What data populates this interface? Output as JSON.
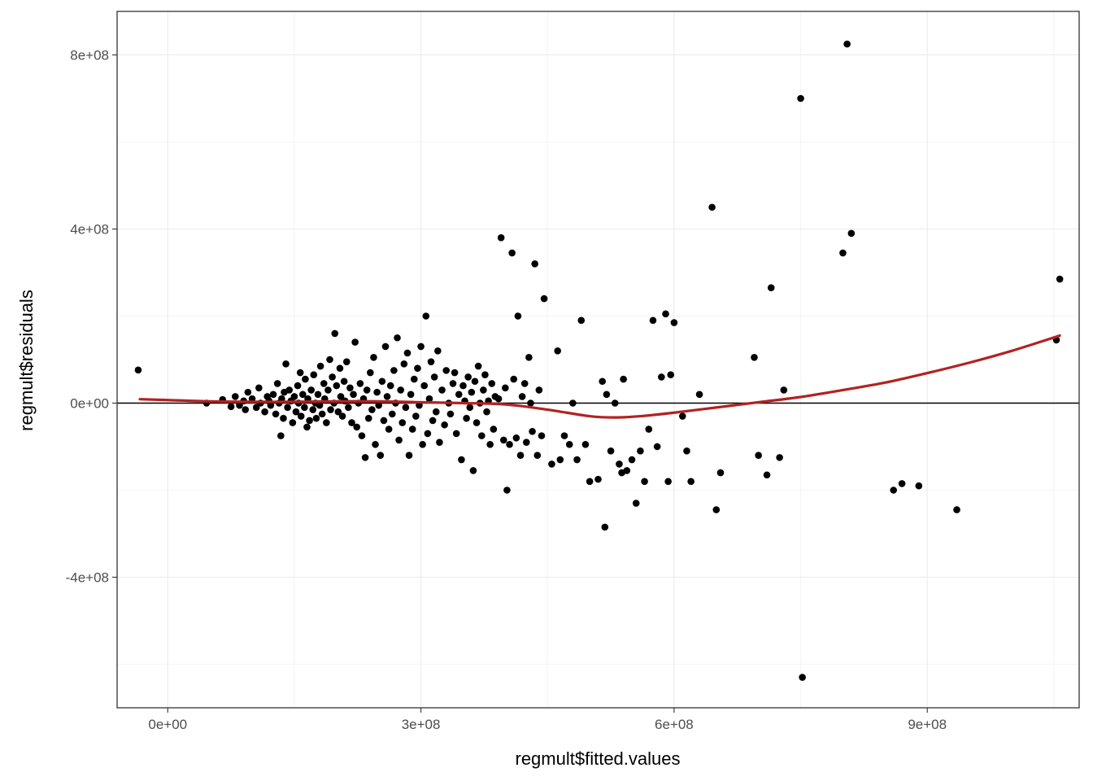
{
  "chart_data": {
    "type": "scatter",
    "title": "",
    "xlabel": "regmult$fitted.values",
    "ylabel": "regmult$residuals",
    "xlim": [
      -60000000,
      1080000000
    ],
    "ylim": [
      -700000000,
      900000000
    ],
    "x_ticks": [
      {
        "value": 0,
        "label": "0e+00"
      },
      {
        "value": 300000000,
        "label": "3e+08"
      },
      {
        "value": 600000000,
        "label": "6e+08"
      },
      {
        "value": 900000000,
        "label": "9e+08"
      }
    ],
    "y_ticks": [
      {
        "value": -400000000,
        "label": "-4e+08"
      },
      {
        "value": 0,
        "label": "0e+00"
      },
      {
        "value": 400000000,
        "label": "4e+08"
      },
      {
        "value": 800000000,
        "label": "8e+08"
      }
    ],
    "grid": true,
    "reference_line": {
      "y": 0
    },
    "colors": {
      "points": "#000000",
      "smooth": "#b22222",
      "grid": "#ebebeb",
      "border": "#333333",
      "zero_line": "#000000"
    },
    "smooth_curve": [
      [
        -33000000,
        9000000
      ],
      [
        0,
        7000000
      ],
      [
        50000000,
        4000000
      ],
      [
        100000000,
        3000000
      ],
      [
        150000000,
        3000000
      ],
      [
        200000000,
        4000000
      ],
      [
        250000000,
        4000000
      ],
      [
        300000000,
        2000000
      ],
      [
        350000000,
        0
      ],
      [
        400000000,
        -3000000
      ],
      [
        450000000,
        -15000000
      ],
      [
        500000000,
        -30000000
      ],
      [
        530000000,
        -33000000
      ],
      [
        560000000,
        -30000000
      ],
      [
        600000000,
        -22000000
      ],
      [
        650000000,
        -10000000
      ],
      [
        700000000,
        2000000
      ],
      [
        750000000,
        14000000
      ],
      [
        800000000,
        30000000
      ],
      [
        850000000,
        47000000
      ],
      [
        900000000,
        69000000
      ],
      [
        950000000,
        93000000
      ],
      [
        1000000000,
        120000000
      ],
      [
        1057000000,
        155000000
      ]
    ],
    "points": [
      [
        -35000000,
        76000000
      ],
      [
        46000000,
        0
      ],
      [
        65000000,
        8000000
      ],
      [
        75000000,
        -8000000
      ],
      [
        80000000,
        15000000
      ],
      [
        85000000,
        -5000000
      ],
      [
        90000000,
        5000000
      ],
      [
        92000000,
        -15000000
      ],
      [
        95000000,
        25000000
      ],
      [
        100000000,
        10000000
      ],
      [
        105000000,
        -10000000
      ],
      [
        108000000,
        35000000
      ],
      [
        110000000,
        0
      ],
      [
        115000000,
        -20000000
      ],
      [
        118000000,
        15000000
      ],
      [
        120000000,
        5000000
      ],
      [
        122000000,
        -5000000
      ],
      [
        125000000,
        20000000
      ],
      [
        128000000,
        -25000000
      ],
      [
        130000000,
        45000000
      ],
      [
        132000000,
        0
      ],
      [
        134000000,
        -75000000
      ],
      [
        135000000,
        10000000
      ],
      [
        137000000,
        -35000000
      ],
      [
        138000000,
        25000000
      ],
      [
        140000000,
        90000000
      ],
      [
        142000000,
        -10000000
      ],
      [
        144000000,
        30000000
      ],
      [
        146000000,
        5000000
      ],
      [
        148000000,
        -45000000
      ],
      [
        150000000,
        15000000
      ],
      [
        152000000,
        -20000000
      ],
      [
        154000000,
        40000000
      ],
      [
        155000000,
        0
      ],
      [
        157000000,
        70000000
      ],
      [
        158000000,
        -30000000
      ],
      [
        160000000,
        20000000
      ],
      [
        162000000,
        -10000000
      ],
      [
        163000000,
        55000000
      ],
      [
        165000000,
        -55000000
      ],
      [
        166000000,
        10000000
      ],
      [
        168000000,
        -40000000
      ],
      [
        170000000,
        30000000
      ],
      [
        172000000,
        -15000000
      ],
      [
        173000000,
        65000000
      ],
      [
        175000000,
        0
      ],
      [
        176000000,
        -35000000
      ],
      [
        178000000,
        20000000
      ],
      [
        180000000,
        -5000000
      ],
      [
        181000000,
        85000000
      ],
      [
        183000000,
        -25000000
      ],
      [
        185000000,
        45000000
      ],
      [
        186000000,
        10000000
      ],
      [
        188000000,
        -45000000
      ],
      [
        190000000,
        30000000
      ],
      [
        192000000,
        100000000
      ],
      [
        193000000,
        -15000000
      ],
      [
        195000000,
        60000000
      ],
      [
        197000000,
        0
      ],
      [
        198000000,
        160000000
      ],
      [
        200000000,
        40000000
      ],
      [
        202000000,
        -20000000
      ],
      [
        204000000,
        80000000
      ],
      [
        205000000,
        15000000
      ],
      [
        207000000,
        -30000000
      ],
      [
        209000000,
        50000000
      ],
      [
        210000000,
        5000000
      ],
      [
        212000000,
        95000000
      ],
      [
        214000000,
        -10000000
      ],
      [
        216000000,
        35000000
      ],
      [
        218000000,
        -45000000
      ],
      [
        220000000,
        20000000
      ],
      [
        222000000,
        140000000
      ],
      [
        224000000,
        -55000000
      ],
      [
        226000000,
        0
      ],
      [
        228000000,
        45000000
      ],
      [
        230000000,
        -75000000
      ],
      [
        232000000,
        10000000
      ],
      [
        234000000,
        -125000000
      ],
      [
        236000000,
        30000000
      ],
      [
        238000000,
        -35000000
      ],
      [
        240000000,
        70000000
      ],
      [
        242000000,
        -15000000
      ],
      [
        244000000,
        105000000
      ],
      [
        246000000,
        -95000000
      ],
      [
        248000000,
        25000000
      ],
      [
        250000000,
        -5000000
      ],
      [
        252000000,
        -120000000
      ],
      [
        254000000,
        50000000
      ],
      [
        256000000,
        -40000000
      ],
      [
        258000000,
        130000000
      ],
      [
        260000000,
        15000000
      ],
      [
        262000000,
        -60000000
      ],
      [
        264000000,
        40000000
      ],
      [
        266000000,
        -25000000
      ],
      [
        268000000,
        75000000
      ],
      [
        270000000,
        0
      ],
      [
        272000000,
        150000000
      ],
      [
        274000000,
        -85000000
      ],
      [
        276000000,
        30000000
      ],
      [
        278000000,
        -45000000
      ],
      [
        280000000,
        90000000
      ],
      [
        282000000,
        -10000000
      ],
      [
        284000000,
        115000000
      ],
      [
        286000000,
        -120000000
      ],
      [
        288000000,
        20000000
      ],
      [
        290000000,
        -60000000
      ],
      [
        292000000,
        55000000
      ],
      [
        294000000,
        -30000000
      ],
      [
        296000000,
        80000000
      ],
      [
        298000000,
        -5000000
      ],
      [
        300000000,
        130000000
      ],
      [
        302000000,
        -95000000
      ],
      [
        304000000,
        40000000
      ],
      [
        306000000,
        200000000
      ],
      [
        308000000,
        -70000000
      ],
      [
        310000000,
        10000000
      ],
      [
        312000000,
        95000000
      ],
      [
        314000000,
        -40000000
      ],
      [
        316000000,
        60000000
      ],
      [
        318000000,
        -20000000
      ],
      [
        320000000,
        120000000
      ],
      [
        322000000,
        -90000000
      ],
      [
        325000000,
        30000000
      ],
      [
        328000000,
        -50000000
      ],
      [
        330000000,
        75000000
      ],
      [
        333000000,
        0
      ],
      [
        335000000,
        -25000000
      ],
      [
        338000000,
        45000000
      ],
      [
        340000000,
        70000000
      ],
      [
        342000000,
        -70000000
      ],
      [
        345000000,
        20000000
      ],
      [
        348000000,
        -130000000
      ],
      [
        350000000,
        40000000
      ],
      [
        352000000,
        5000000
      ],
      [
        354000000,
        -35000000
      ],
      [
        356000000,
        60000000
      ],
      [
        358000000,
        -10000000
      ],
      [
        360000000,
        25000000
      ],
      [
        362000000,
        -155000000
      ],
      [
        364000000,
        50000000
      ],
      [
        366000000,
        -45000000
      ],
      [
        368000000,
        85000000
      ],
      [
        370000000,
        0
      ],
      [
        372000000,
        -75000000
      ],
      [
        374000000,
        30000000
      ],
      [
        376000000,
        65000000
      ],
      [
        378000000,
        -20000000
      ],
      [
        380000000,
        5000000
      ],
      [
        382000000,
        -95000000
      ],
      [
        384000000,
        45000000
      ],
      [
        386000000,
        -60000000
      ],
      [
        388000000,
        15000000
      ],
      [
        392000000,
        10000000
      ],
      [
        395000000,
        380000000
      ],
      [
        398000000,
        -85000000
      ],
      [
        400000000,
        35000000
      ],
      [
        402000000,
        -200000000
      ],
      [
        405000000,
        -95000000
      ],
      [
        408000000,
        345000000
      ],
      [
        410000000,
        55000000
      ],
      [
        413000000,
        -80000000
      ],
      [
        415000000,
        200000000
      ],
      [
        418000000,
        -120000000
      ],
      [
        420000000,
        15000000
      ],
      [
        423000000,
        45000000
      ],
      [
        425000000,
        -90000000
      ],
      [
        428000000,
        105000000
      ],
      [
        430000000,
        0
      ],
      [
        432000000,
        -65000000
      ],
      [
        435000000,
        320000000
      ],
      [
        438000000,
        -120000000
      ],
      [
        440000000,
        30000000
      ],
      [
        443000000,
        -75000000
      ],
      [
        446000000,
        240000000
      ],
      [
        455000000,
        -140000000
      ],
      [
        462000000,
        120000000
      ],
      [
        465000000,
        -130000000
      ],
      [
        470000000,
        -75000000
      ],
      [
        476000000,
        -95000000
      ],
      [
        480000000,
        0
      ],
      [
        485000000,
        -130000000
      ],
      [
        490000000,
        190000000
      ],
      [
        495000000,
        -95000000
      ],
      [
        500000000,
        -180000000
      ],
      [
        510000000,
        -175000000
      ],
      [
        515000000,
        50000000
      ],
      [
        518000000,
        -285000000
      ],
      [
        520000000,
        20000000
      ],
      [
        525000000,
        -110000000
      ],
      [
        530000000,
        0
      ],
      [
        535000000,
        -140000000
      ],
      [
        538000000,
        -160000000
      ],
      [
        540000000,
        55000000
      ],
      [
        544000000,
        -155000000
      ],
      [
        550000000,
        -130000000
      ],
      [
        555000000,
        -230000000
      ],
      [
        560000000,
        -110000000
      ],
      [
        565000000,
        -180000000
      ],
      [
        570000000,
        -60000000
      ],
      [
        575000000,
        190000000
      ],
      [
        580000000,
        -100000000
      ],
      [
        585000000,
        60000000
      ],
      [
        590000000,
        205000000
      ],
      [
        593000000,
        -180000000
      ],
      [
        596000000,
        65000000
      ],
      [
        600000000,
        185000000
      ],
      [
        610000000,
        -30000000
      ],
      [
        615000000,
        -110000000
      ],
      [
        620000000,
        -180000000
      ],
      [
        630000000,
        20000000
      ],
      [
        645000000,
        450000000
      ],
      [
        650000000,
        -245000000
      ],
      [
        655000000,
        -160000000
      ],
      [
        695000000,
        105000000
      ],
      [
        700000000,
        -120000000
      ],
      [
        710000000,
        -165000000
      ],
      [
        715000000,
        265000000
      ],
      [
        725000000,
        -125000000
      ],
      [
        730000000,
        30000000
      ],
      [
        750000000,
        700000000
      ],
      [
        752000000,
        -630000000
      ],
      [
        800000000,
        345000000
      ],
      [
        805000000,
        825000000
      ],
      [
        810000000,
        390000000
      ],
      [
        860000000,
        -200000000
      ],
      [
        870000000,
        -185000000
      ],
      [
        890000000,
        -190000000
      ],
      [
        935000000,
        -245000000
      ],
      [
        1053000000,
        145000000
      ],
      [
        1057000000,
        285000000
      ]
    ]
  }
}
